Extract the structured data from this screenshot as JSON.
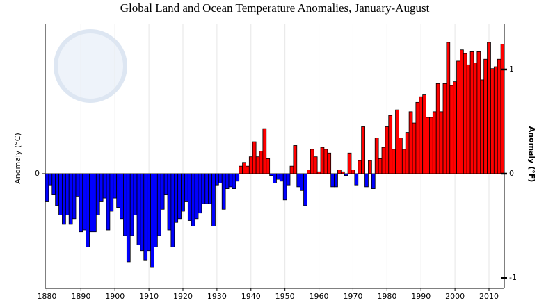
{
  "chart_data": {
    "type": "bar",
    "title": "Global Land and Ocean Temperature Anomalies, January-August",
    "ylabel": "Anomaly (°C)",
    "y2label": "Anomaly (°F)",
    "x": [
      1880,
      1881,
      1882,
      1883,
      1884,
      1885,
      1886,
      1887,
      1888,
      1889,
      1890,
      1891,
      1892,
      1893,
      1894,
      1895,
      1896,
      1897,
      1898,
      1899,
      1900,
      1901,
      1902,
      1903,
      1904,
      1905,
      1906,
      1907,
      1908,
      1909,
      1910,
      1911,
      1912,
      1913,
      1914,
      1915,
      1916,
      1917,
      1918,
      1919,
      1920,
      1921,
      1922,
      1923,
      1924,
      1925,
      1926,
      1927,
      1928,
      1929,
      1930,
      1931,
      1932,
      1933,
      1934,
      1935,
      1936,
      1937,
      1938,
      1939,
      1940,
      1941,
      1942,
      1943,
      1944,
      1945,
      1946,
      1947,
      1948,
      1949,
      1950,
      1951,
      1952,
      1953,
      1954,
      1955,
      1956,
      1957,
      1958,
      1959,
      1960,
      1961,
      1962,
      1963,
      1964,
      1965,
      1966,
      1967,
      1968,
      1969,
      1970,
      1971,
      1972,
      1973,
      1974,
      1975,
      1976,
      1977,
      1978,
      1979,
      1980,
      1981,
      1982,
      1983,
      1984,
      1985,
      1986,
      1987,
      1988,
      1989,
      1990,
      1991,
      1992,
      1993,
      1994,
      1995,
      1996,
      1997,
      1998,
      1999,
      2000,
      2001,
      2002,
      2003,
      2004,
      2005,
      2006,
      2007,
      2008,
      2009,
      2010,
      2011,
      2012,
      2013,
      2014
    ],
    "values": [
      -0.15,
      -0.06,
      -0.11,
      -0.17,
      -0.22,
      -0.27,
      -0.22,
      -0.27,
      -0.24,
      -0.12,
      -0.31,
      -0.3,
      -0.39,
      -0.31,
      -0.31,
      -0.22,
      -0.15,
      -0.13,
      -0.3,
      -0.2,
      -0.13,
      -0.18,
      -0.24,
      -0.33,
      -0.47,
      -0.33,
      -0.22,
      -0.38,
      -0.41,
      -0.46,
      -0.41,
      -0.5,
      -0.39,
      -0.33,
      -0.19,
      -0.11,
      -0.3,
      -0.39,
      -0.26,
      -0.24,
      -0.2,
      -0.15,
      -0.25,
      -0.28,
      -0.24,
      -0.21,
      -0.16,
      -0.16,
      -0.16,
      -0.28,
      -0.06,
      -0.05,
      -0.19,
      -0.08,
      -0.07,
      -0.08,
      -0.04,
      0.04,
      0.06,
      0.04,
      0.09,
      0.17,
      0.09,
      0.12,
      0.24,
      0.08,
      -0.01,
      -0.05,
      -0.03,
      -0.04,
      -0.14,
      -0.06,
      0.04,
      0.15,
      -0.07,
      -0.09,
      -0.17,
      0.02,
      0.13,
      0.09,
      0.01,
      0.14,
      0.13,
      0.11,
      -0.07,
      -0.07,
      0.02,
      0.01,
      -0.01,
      0.11,
      0.02,
      -0.06,
      0.07,
      0.25,
      -0.07,
      0.07,
      -0.08,
      0.19,
      0.08,
      0.14,
      0.25,
      0.31,
      0.13,
      0.34,
      0.19,
      0.13,
      0.22,
      0.33,
      0.27,
      0.38,
      0.41,
      0.42,
      0.3,
      0.3,
      0.33,
      0.48,
      0.33,
      0.48,
      0.7,
      0.47,
      0.49,
      0.6,
      0.66,
      0.64,
      0.58,
      0.65,
      0.59,
      0.65,
      0.5,
      0.61,
      0.7,
      0.56,
      0.57,
      0.61,
      0.69
    ],
    "positive_color": "#ff0000",
    "negative_color": "#0000ff",
    "xlim": [
      1879.5,
      2014.5
    ],
    "xticks": [
      1880,
      1890,
      1900,
      1910,
      1920,
      1930,
      1940,
      1950,
      1960,
      1970,
      1980,
      1990,
      2000,
      2010
    ],
    "ylim": [
      -0.611,
      0.796
    ],
    "yticks": [
      0
    ],
    "y2lim": [
      -1.1,
      1.433
    ],
    "y2ticks": [
      -1,
      0,
      1
    ],
    "grid": true
  }
}
